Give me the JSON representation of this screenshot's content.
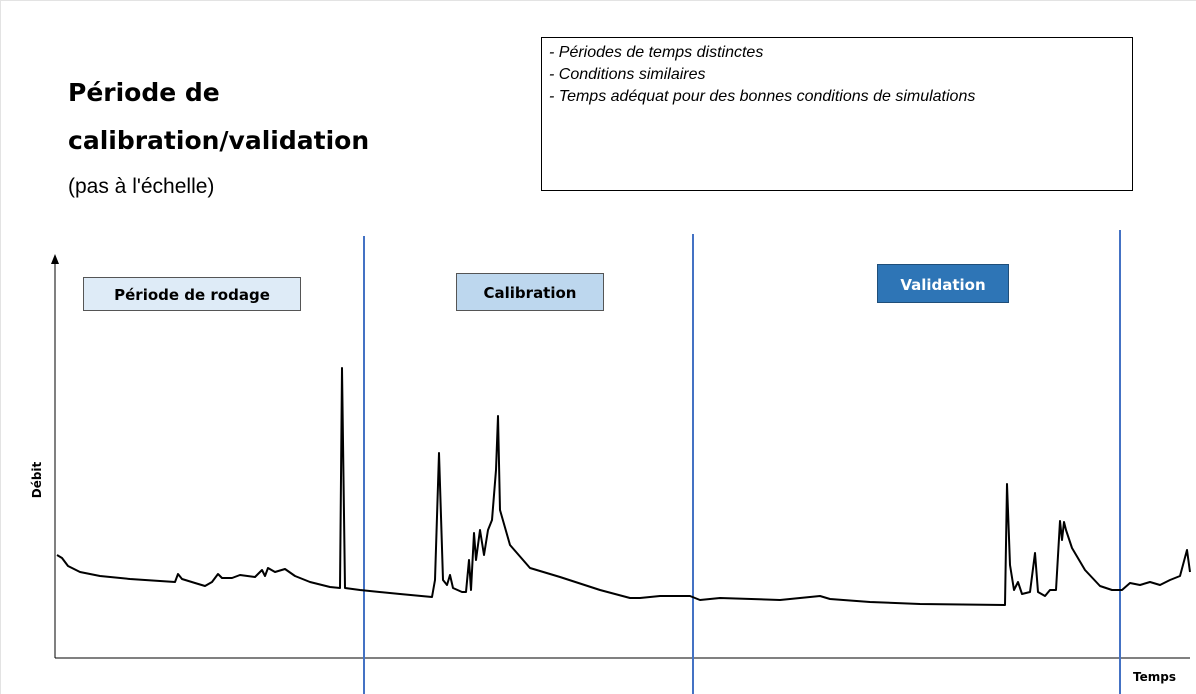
{
  "title": [
    "Période de",
    "calibration/validation"
  ],
  "subtitle": "(pas à l'échelle)",
  "notes": [
    "- Périodes de temps distinctes",
    "- Conditions similaires",
    "- Temps adéquat pour des bonnes conditions de simulations"
  ],
  "periods": [
    "Période de rodage",
    "Calibration",
    "Validation"
  ],
  "axes": {
    "y": "Débit",
    "x": "Temps"
  }
}
